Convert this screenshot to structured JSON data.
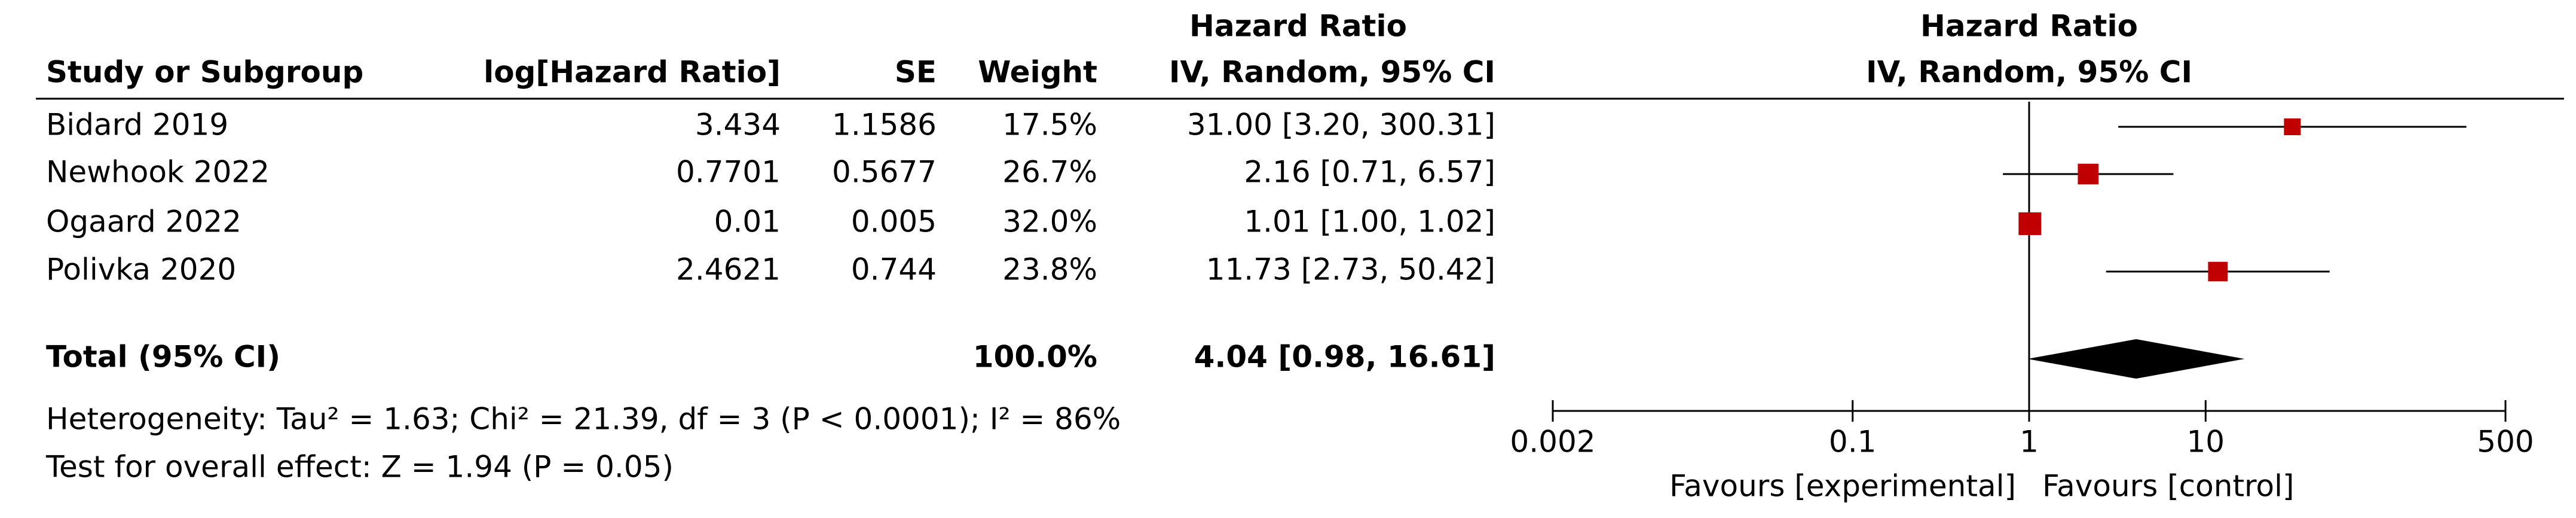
{
  "chart_data": {
    "type": "forest",
    "columns": [
      "Study or Subgroup",
      "log[Hazard Ratio]",
      "SE",
      "Weight",
      "IV, Random, 95% CI"
    ],
    "effect_header": "Hazard Ratio",
    "plot_header": [
      "Hazard Ratio",
      "IV, Random, 95% CI"
    ],
    "studies": [
      {
        "name": "Bidard 2019",
        "log_hr": "3.434",
        "se": "1.1586",
        "weight": 17.5,
        "weight_label": "17.5%",
        "ci_label": "31.00 [3.20, 300.31]",
        "hr": 31.0,
        "lo": 3.2,
        "hi": 300.31
      },
      {
        "name": "Newhook 2022",
        "log_hr": "0.7701",
        "se": "0.5677",
        "weight": 26.7,
        "weight_label": "26.7%",
        "ci_label": "2.16 [0.71, 6.57]",
        "hr": 2.16,
        "lo": 0.71,
        "hi": 6.57
      },
      {
        "name": "Ogaard 2022",
        "log_hr": "0.01",
        "se": "0.005",
        "weight": 32.0,
        "weight_label": "32.0%",
        "ci_label": "1.01 [1.00, 1.02]",
        "hr": 1.01,
        "lo": 1.0,
        "hi": 1.02
      },
      {
        "name": "Polivka 2020",
        "log_hr": "2.4621",
        "se": "0.744",
        "weight": 23.8,
        "weight_label": "23.8%",
        "ci_label": "11.73 [2.73, 50.42]",
        "hr": 11.73,
        "lo": 2.73,
        "hi": 50.42
      }
    ],
    "total": {
      "name": "Total (95% CI)",
      "weight_label": "100.0%",
      "ci_label": "4.04 [0.98, 16.61]",
      "hr": 4.04,
      "lo": 0.98,
      "hi": 16.61
    },
    "heterogeneity": "Heterogeneity: Tau² = 1.63; Chi² = 21.39, df = 3 (P < 0.0001); I² = 86%",
    "overall_effect": "Test for overall effect: Z = 1.94 (P = 0.05)",
    "log_x": true,
    "xlim": [
      0.002,
      500
    ],
    "xticks": [
      0.002,
      0.1,
      1,
      10,
      500
    ],
    "favours": [
      "Favours [experimental]",
      "Favours [control]"
    ],
    "marker_color": "#c00000",
    "diamond_color": "#000000"
  }
}
